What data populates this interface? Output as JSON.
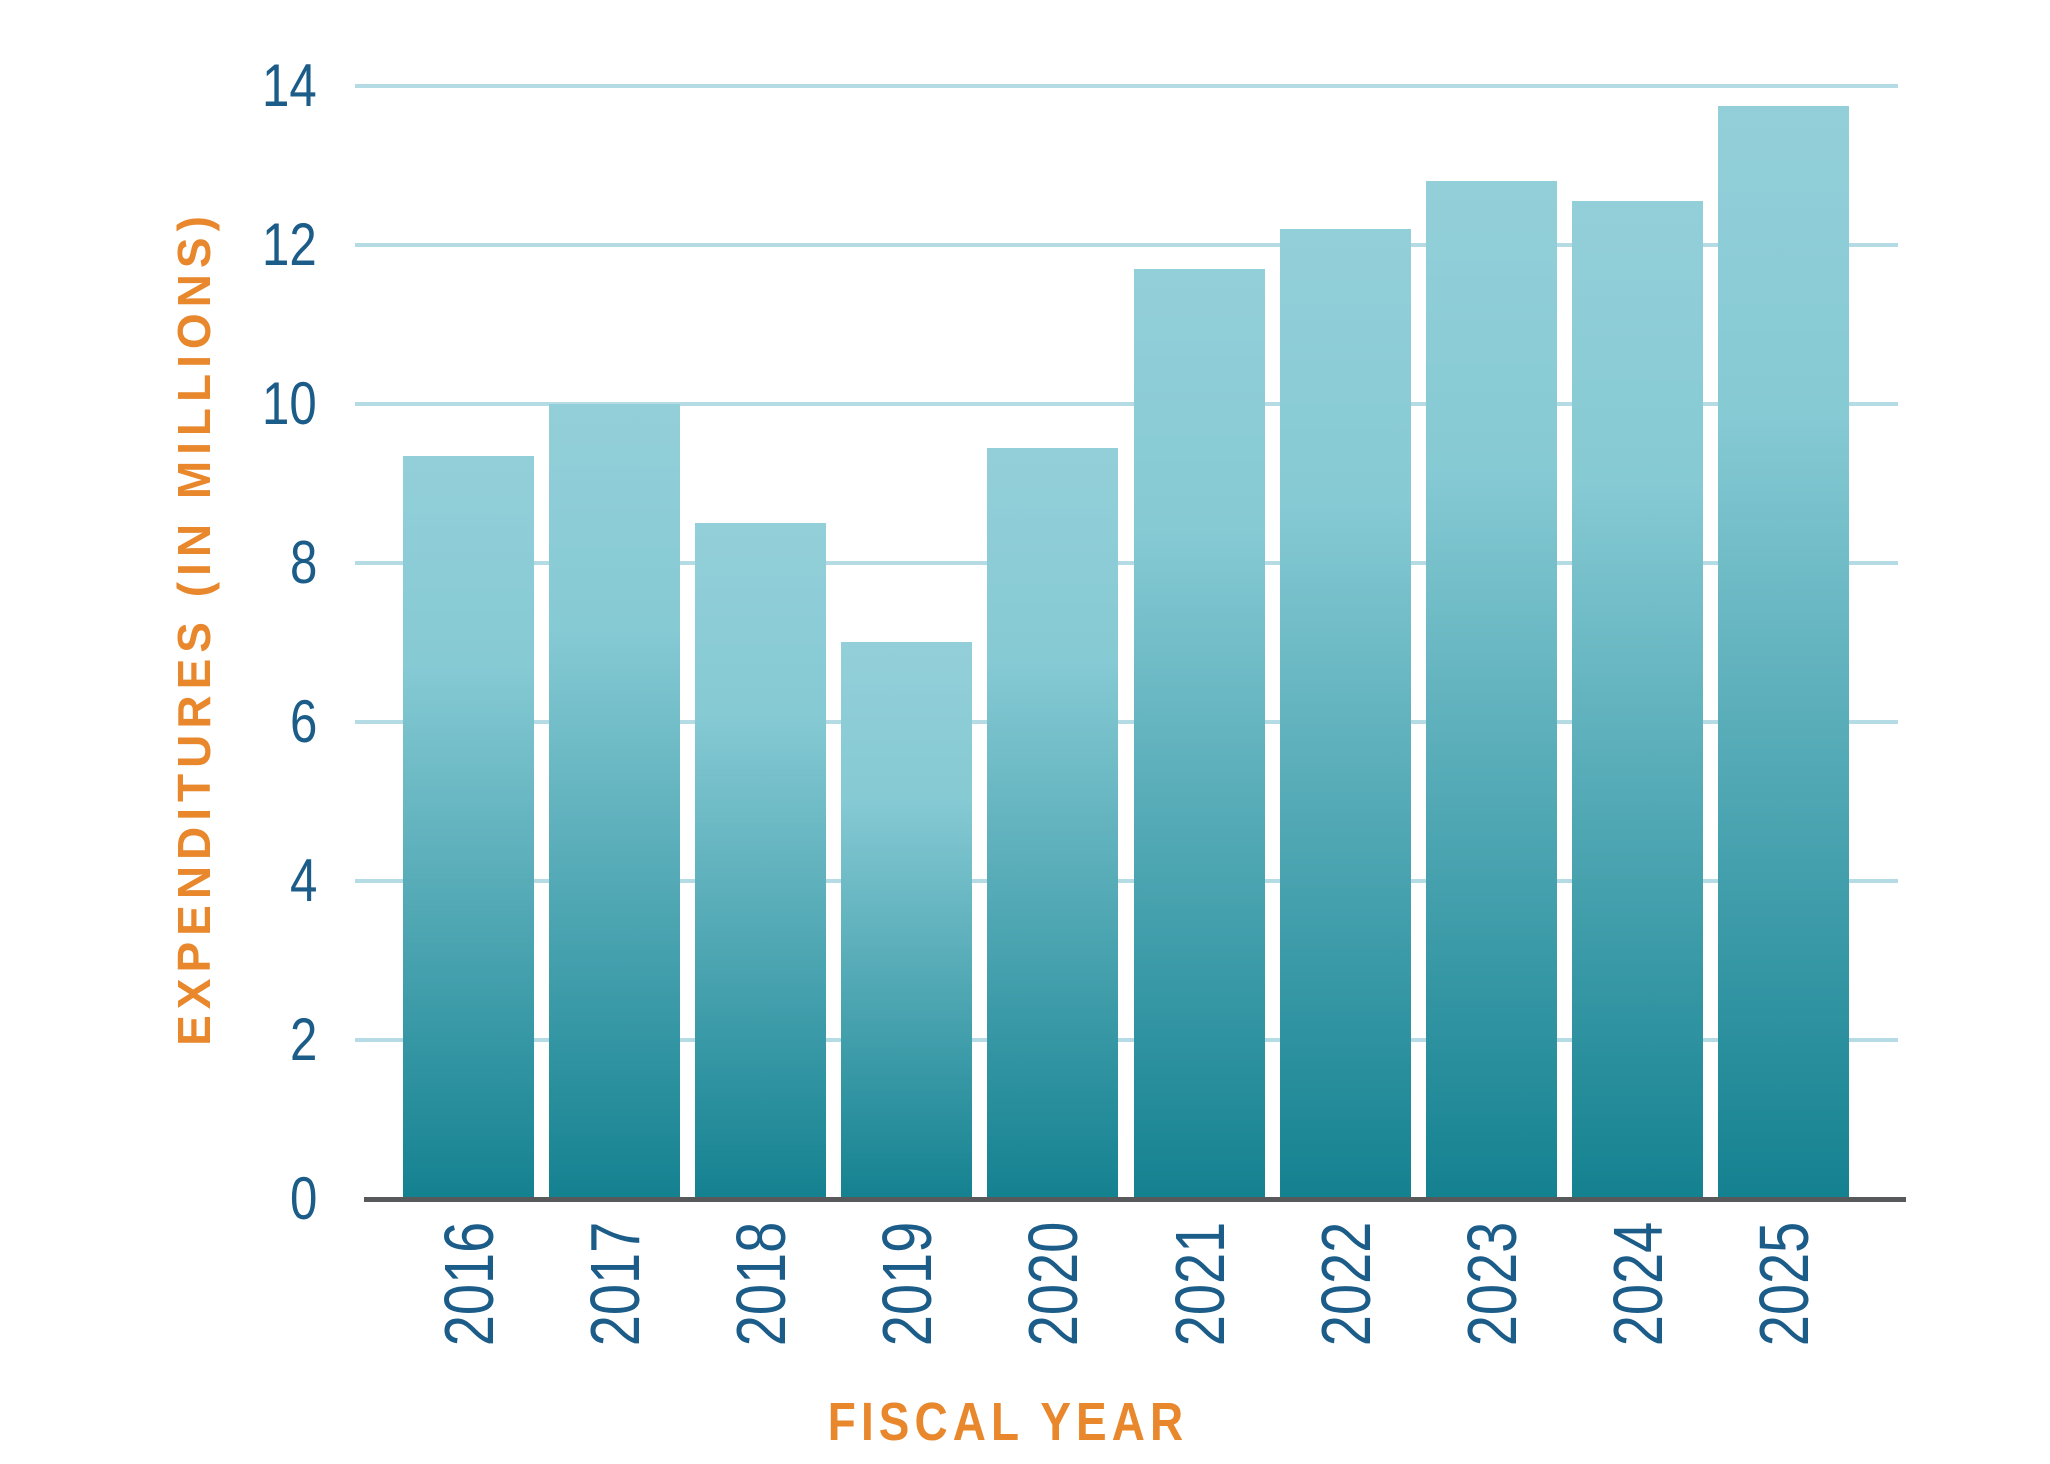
{
  "chart_data": {
    "type": "bar",
    "title": "",
    "xlabel": "FISCAL YEAR",
    "ylabel": "EXPENDITURES (IN MILLIONS)",
    "categories": [
      "2016",
      "2017",
      "2018",
      "2019",
      "2020",
      "2021",
      "2022",
      "2023",
      "2024",
      "2025"
    ],
    "values": [
      9.35,
      10,
      8.5,
      7,
      9.45,
      11.7,
      12.2,
      12.8,
      12.55,
      13.75
    ],
    "yticks": [
      0,
      2,
      4,
      6,
      8,
      10,
      12,
      14
    ],
    "ylim": [
      0,
      14
    ],
    "grid": true,
    "legend_position": "none",
    "colors": {
      "bar_gradient_top": "#93cfd9",
      "bar_gradient_mid": "#86cad4",
      "bar_gradient_bottom": "#148190",
      "gridline": "#b5dbe5",
      "axis_line": "#58595b",
      "tick_label": "#1b5c88",
      "axis_title": "#e8872b"
    }
  }
}
